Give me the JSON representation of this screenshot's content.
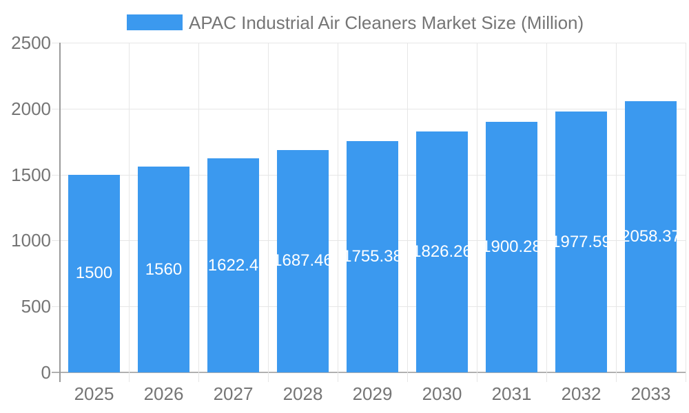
{
  "legend": {
    "title": "APAC Industrial Air Cleaners Market Size (Million)"
  },
  "chart_data": {
    "type": "bar",
    "title": "APAC Industrial Air Cleaners Market Size (Million)",
    "categories": [
      "2025",
      "2026",
      "2027",
      "2028",
      "2029",
      "2030",
      "2031",
      "2032",
      "2033"
    ],
    "values": [
      1500,
      1560,
      1622.4,
      1687.46,
      1755.38,
      1826.26,
      1900.28,
      1977.59,
      2058.37
    ],
    "value_labels": [
      "1500",
      "1560",
      "1622.4",
      "1687.46",
      "1755.38",
      "1826.26",
      "1900.28",
      "1977.59",
      "2058.37"
    ],
    "xlabel": "",
    "ylabel": "",
    "ylim": [
      0,
      2500
    ],
    "yticks": [
      0,
      500,
      1000,
      1500,
      2000,
      2500
    ],
    "grid": true,
    "legend_position": "top"
  },
  "colors": {
    "bar": "#3B99EF",
    "bar-label": "#FFFFFF",
    "grid": "#E6E6E6",
    "baseline": "#B0B0B0",
    "axis-line": "#9A9A9A",
    "axis-text": "#757575",
    "title-text": "#757575"
  }
}
